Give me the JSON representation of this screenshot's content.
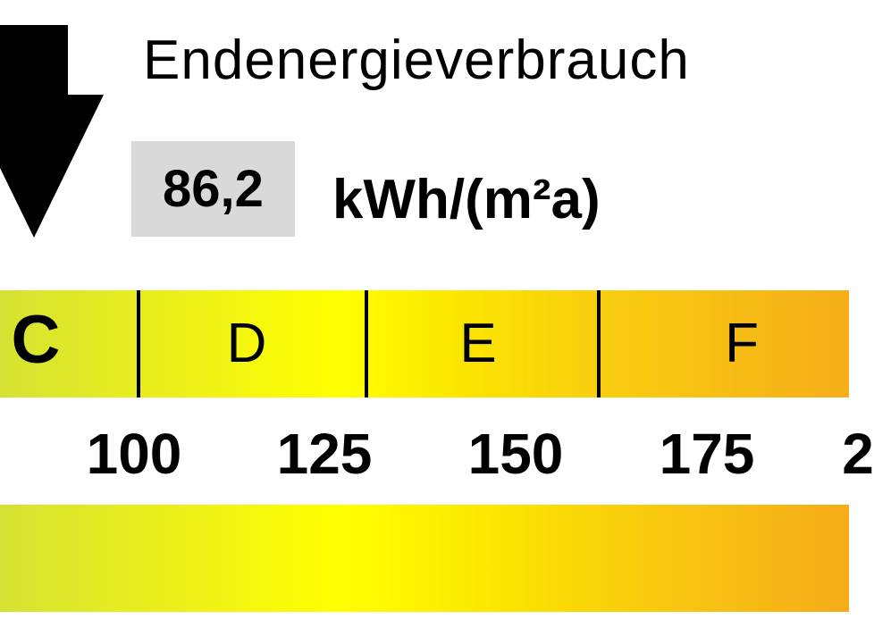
{
  "header": {
    "title": "Endenergieverbrauch",
    "value": "86,2",
    "unit": "kWh/(m²a)",
    "indicator_icon": "down-arrow-icon"
  },
  "scale": {
    "classes": [
      "C",
      "D",
      "E",
      "F"
    ],
    "ticks": [
      "100",
      "125",
      "150",
      "175",
      "2"
    ]
  },
  "colors": {
    "green_yellow": "#d6e232",
    "yellow": "#ffff00",
    "orange": "#f5ae18",
    "value_box": "#d9d9d9"
  }
}
